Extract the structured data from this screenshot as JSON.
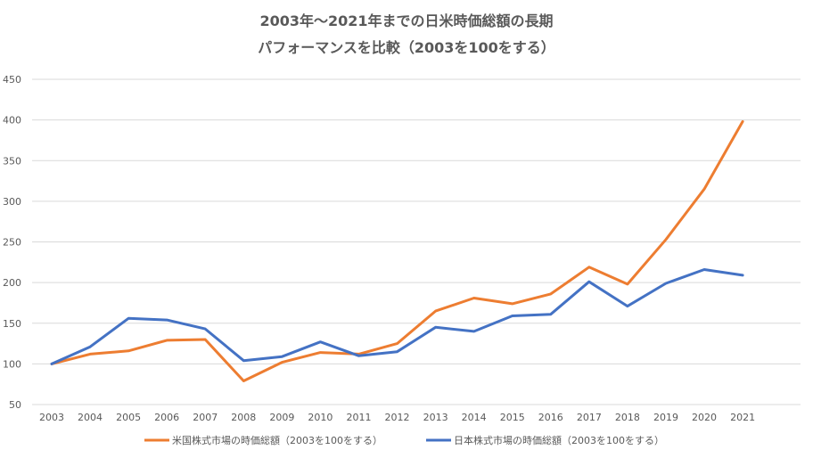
{
  "chart_data": {
    "type": "line",
    "title_lines": [
      "2003年～2021年までの日米時価総額の長期",
      "パフォーマンスを比較（2003を100をする）"
    ],
    "xlabel": "",
    "ylabel": "",
    "categories": [
      "2003",
      "2004",
      "2005",
      "2006",
      "2007",
      "2008",
      "2009",
      "2010",
      "2011",
      "2012",
      "2013",
      "2014",
      "2015",
      "2016",
      "2017",
      "2018",
      "2019",
      "2020",
      "2021"
    ],
    "ylim": [
      50,
      450
    ],
    "yticks": [
      50,
      100,
      150,
      200,
      250,
      300,
      350,
      400,
      450
    ],
    "grid": true,
    "legend_position": "bottom",
    "series": [
      {
        "name": "米国株式市場の時価総額（2003を100をする）",
        "color": "#ED7D31",
        "values": [
          100,
          112,
          116,
          129,
          130,
          79,
          102,
          114,
          112,
          125,
          165,
          181,
          174,
          186,
          219,
          198,
          253,
          315,
          398
        ]
      },
      {
        "name": "日本株式市場の時価総額（2003を100をする）",
        "color": "#4472C4",
        "values": [
          100,
          121,
          156,
          154,
          143,
          104,
          109,
          127,
          110,
          115,
          145,
          140,
          159,
          161,
          201,
          171,
          199,
          216,
          209
        ]
      }
    ]
  }
}
